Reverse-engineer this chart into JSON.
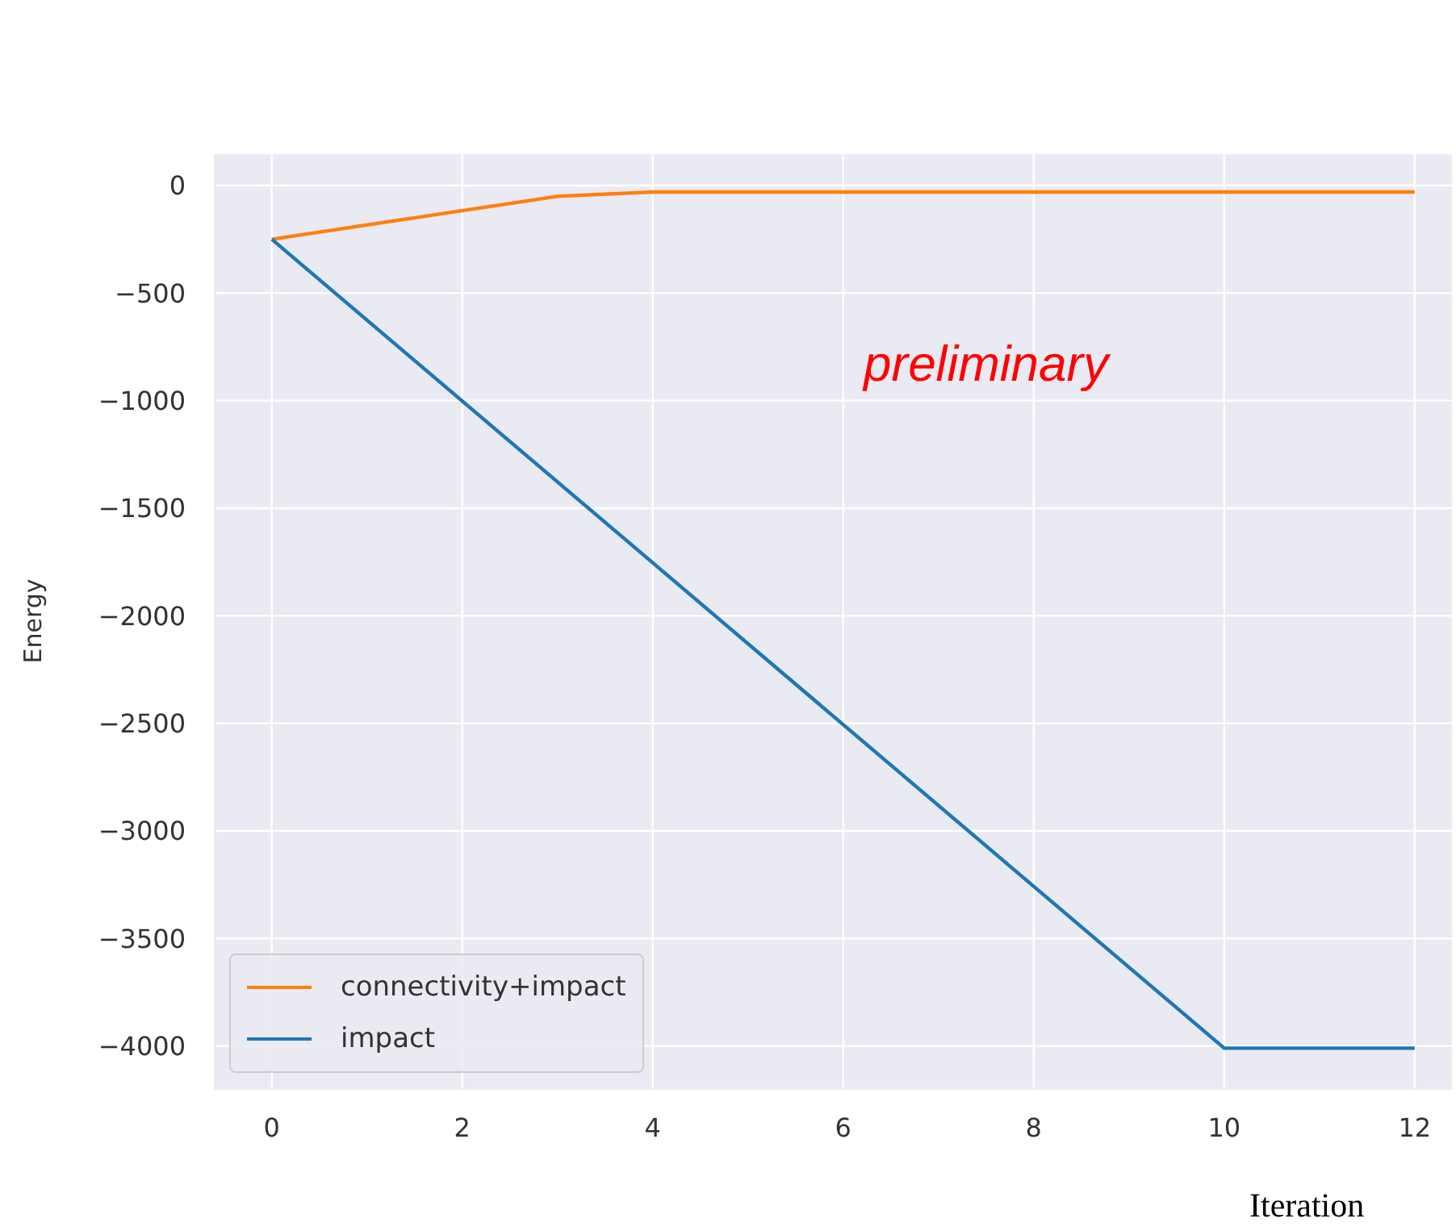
{
  "chart_data": {
    "type": "line",
    "xlabel": "Iteration",
    "ylabel": "Energy",
    "annotations": [
      "preliminary"
    ],
    "xlim": [
      -0.6,
      12.4
    ],
    "xticks": [
      0,
      2,
      4,
      6,
      8,
      10,
      12
    ],
    "ylim": [
      -4200,
      150
    ],
    "yticks": [
      {
        "value": -4000,
        "label": "−4000"
      },
      {
        "value": -3500,
        "label": "−3500"
      },
      {
        "value": -3000,
        "label": "−3000"
      },
      {
        "value": -2500,
        "label": "−2500"
      },
      {
        "value": -2000,
        "label": "−2000"
      },
      {
        "value": -1500,
        "label": "−1500"
      },
      {
        "value": -1000,
        "label": "−1000"
      },
      {
        "value": -500,
        "label": "−500"
      },
      0
    ],
    "grid": true,
    "legend": "bottom left",
    "line_style": "solid",
    "marker": "none",
    "series": [
      {
        "name": "connectivity+impact",
        "color": "#ff7f0e",
        "x": [
          0,
          3,
          4,
          12
        ],
        "values": [
          -250,
          -50,
          -30,
          -30
        ]
      },
      {
        "name": "impact",
        "color": "#1f77b4",
        "x": [
          0,
          10,
          12
        ],
        "values": [
          -250,
          -4010,
          -4010
        ]
      }
    ]
  }
}
